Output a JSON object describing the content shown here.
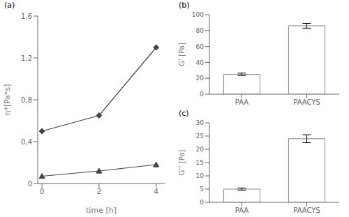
{
  "chart_data": [
    {
      "type": "line",
      "title": "(a)",
      "xlabel": "time [h]",
      "ylabel": "η*[Pa*s]",
      "x": [
        0,
        2,
        4
      ],
      "series": [
        {
          "color": "#444444",
          "marker": "diamond",
          "values": [
            0.5,
            0.65,
            1.3
          ]
        },
        {
          "color": "#444444",
          "marker": "triangle",
          "values": [
            0.07,
            0.12,
            0.18
          ]
        }
      ],
      "xlim": [
        -0.15,
        4.3
      ],
      "xticks": [
        0,
        2,
        4
      ],
      "ylim": [
        0,
        1.6
      ],
      "yticks": [
        0,
        {
          "value": 0.4,
          "label": "0,4"
        },
        {
          "value": 0.8,
          "label": "0,8"
        },
        {
          "value": 1.2,
          "label": "1,2"
        },
        {
          "value": 1.6,
          "label": "1,6"
        }
      ]
    },
    {
      "type": "bar",
      "title": "(b)",
      "ylabel": "G’ [Pa]",
      "categories": [
        "PAA",
        "PAACYS"
      ],
      "values": [
        25,
        86
      ],
      "errors": [
        1.5,
        3.0
      ],
      "color": "#ffffff",
      "ylim": [
        0,
        100
      ],
      "yticks": [
        0,
        20,
        40,
        60,
        80,
        100
      ]
    },
    {
      "type": "bar",
      "title": "(c)",
      "ylabel": "G’’ [Pa]",
      "categories": [
        "PAA",
        "PAACYS"
      ],
      "values": [
        5,
        24
      ],
      "errors": [
        0.4,
        1.5
      ],
      "color": "#ffffff",
      "ylim": [
        0,
        30
      ],
      "yticks": [
        0,
        5,
        10,
        15,
        20,
        25,
        30
      ]
    }
  ]
}
